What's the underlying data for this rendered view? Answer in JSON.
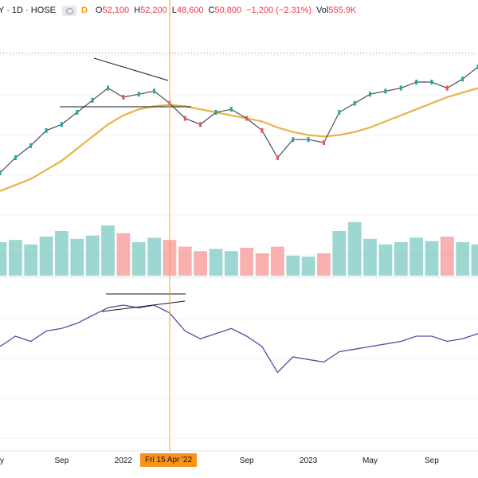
{
  "header": {
    "symbol": "Y · 1D · HOSE",
    "interval_badge": "D",
    "open_label": "O",
    "open": "52,100",
    "high_label": "H",
    "high": "52,200",
    "low_label": "L",
    "low": "48,600",
    "close_label": "C",
    "close": "50,800",
    "change": "−1,200 (−2.31%)",
    "vol_label": "Vol",
    "volume": "555.9K"
  },
  "crosshair_label": "Fri 15 Apr '22",
  "colors": {
    "up": "#26a69a",
    "down": "#ef5350",
    "price": "#4a4e5a",
    "ma": "#e5b545",
    "lower": "#5c4aa0",
    "crosshair": "#f7a21b",
    "trend": "#131722"
  },
  "chart_data": {
    "type": "line",
    "title": "",
    "x_tick_labels": [
      "y",
      "Sep",
      "2022",
      "Sep",
      "2023",
      "May",
      "Sep"
    ],
    "x": [
      "2021-05",
      "2021-06",
      "2021-07",
      "2021-08",
      "2021-09",
      "2021-10",
      "2021-11",
      "2021-12",
      "2022-01",
      "2022-02",
      "2022-03",
      "2022-04",
      "2022-05",
      "2022-06",
      "2022-07",
      "2022-08",
      "2022-09",
      "2022-10",
      "2022-11",
      "2022-12",
      "2023-01",
      "2023-02",
      "2023-03",
      "2023-04",
      "2023-05",
      "2023-06",
      "2023-07",
      "2023-08",
      "2023-09",
      "2023-10",
      "2023-11",
      "2023-12"
    ],
    "series": [
      {
        "values": [
          30000,
          35000,
          39000,
          44000,
          46000,
          50000,
          54000,
          58000,
          55000,
          56000,
          57000,
          53000,
          48000,
          46000,
          50000,
          51000,
          48000,
          44000,
          35000,
          41000,
          41000,
          40000,
          50000,
          53000,
          56000,
          57000,
          58000,
          60000,
          60000,
          58000,
          61000,
          65000
        ]
      },
      {
        "values": [
          24000,
          26000,
          28000,
          31000,
          34000,
          38000,
          42000,
          46000,
          49000,
          51000,
          52000,
          52500,
          52000,
          51000,
          50000,
          49000,
          48000,
          47000,
          45000,
          43500,
          42500,
          42000,
          42500,
          43500,
          45000,
          47000,
          49000,
          51000,
          53000,
          55000,
          56500,
          58000
        ]
      }
    ],
    "volume": [
      30,
      32,
      28,
      35,
      40,
      33,
      36,
      45,
      38,
      30,
      34,
      32,
      26,
      22,
      24,
      22,
      25,
      20,
      26,
      18,
      17,
      20,
      40,
      48,
      33,
      28,
      30,
      34,
      31,
      35,
      30,
      28
    ],
    "lower_indicator": [
      40,
      44,
      42,
      46,
      47,
      49,
      52,
      55,
      56,
      55,
      56,
      53,
      46,
      43,
      45,
      47,
      44,
      40,
      30,
      36,
      35,
      34,
      38,
      39,
      40,
      41,
      42,
      44,
      44,
      42,
      43,
      45
    ],
    "ylim_price": [
      20000,
      70000
    ],
    "grid": true
  }
}
